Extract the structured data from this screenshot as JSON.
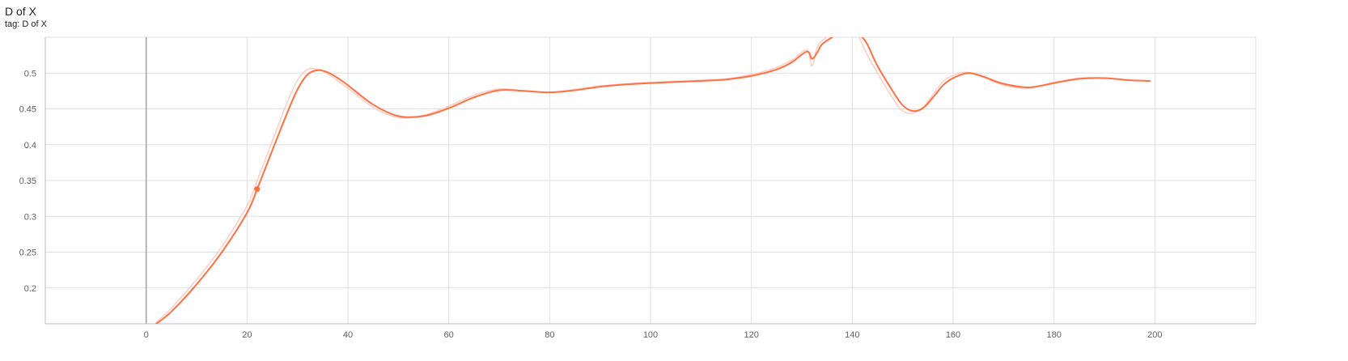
{
  "header": {
    "title": "D of X",
    "subtitle": "tag: D of X"
  },
  "chart_data": {
    "type": "line",
    "title": "D of X",
    "subtitle": "tag: D of X",
    "xlabel": "",
    "ylabel": "",
    "xlim": [
      -20,
      220
    ],
    "ylim": [
      0.15,
      0.55
    ],
    "x_ticks": [
      0,
      20,
      40,
      60,
      80,
      100,
      120,
      140,
      160,
      180,
      200
    ],
    "y_ticks": [
      0.2,
      0.25,
      0.3,
      0.35,
      0.4,
      0.45,
      0.5
    ],
    "grid": true,
    "colors": {
      "smoothed": "#ff7043",
      "raw": "#ffcdc2",
      "grid": "#e0e0e0",
      "zero_line": "#9e9e9e"
    },
    "series": [
      {
        "role": "smoothed",
        "x": [
          2,
          5,
          10,
          15,
          20,
          22,
          25,
          28,
          30,
          32,
          34,
          36,
          38,
          40,
          45,
          50,
          55,
          60,
          65,
          70,
          75,
          80,
          85,
          90,
          95,
          100,
          110,
          115,
          120,
          125,
          128,
          131,
          132,
          133,
          134,
          136,
          138,
          140,
          141,
          142,
          143,
          145,
          148,
          150,
          152,
          154,
          156,
          158,
          160,
          163,
          166,
          170,
          175,
          180,
          185,
          190,
          195,
          199
        ],
        "y": [
          0.15,
          0.167,
          0.205,
          0.25,
          0.305,
          0.338,
          0.392,
          0.445,
          0.477,
          0.498,
          0.504,
          0.501,
          0.493,
          0.483,
          0.456,
          0.44,
          0.44,
          0.451,
          0.466,
          0.476,
          0.475,
          0.473,
          0.476,
          0.481,
          0.484,
          0.486,
          0.489,
          0.491,
          0.496,
          0.505,
          0.515,
          0.53,
          0.52,
          0.528,
          0.54,
          0.55,
          0.56,
          0.57,
          0.56,
          0.55,
          0.54,
          0.51,
          0.475,
          0.455,
          0.447,
          0.451,
          0.466,
          0.483,
          0.493,
          0.5,
          0.495,
          0.485,
          0.48,
          0.486,
          0.492,
          0.493,
          0.49,
          0.489
        ]
      },
      {
        "role": "raw",
        "x": [
          2,
          5,
          10,
          15,
          20,
          22,
          25,
          28,
          30,
          32,
          34,
          36,
          38,
          40,
          45,
          50,
          55,
          60,
          65,
          70,
          75,
          80,
          85,
          90,
          95,
          100,
          110,
          115,
          120,
          125,
          128,
          131,
          132,
          133,
          134,
          136,
          138,
          140,
          141,
          142,
          143,
          145,
          148,
          150,
          152,
          154,
          156,
          158,
          160,
          163,
          166,
          170,
          175,
          180,
          185,
          190,
          195,
          199
        ],
        "y": [
          0.152,
          0.172,
          0.212,
          0.258,
          0.315,
          0.35,
          0.405,
          0.46,
          0.49,
          0.505,
          0.505,
          0.499,
          0.489,
          0.479,
          0.452,
          0.438,
          0.441,
          0.454,
          0.469,
          0.478,
          0.475,
          0.473,
          0.477,
          0.482,
          0.485,
          0.487,
          0.49,
          0.492,
          0.498,
          0.508,
          0.518,
          0.532,
          0.51,
          0.535,
          0.545,
          0.555,
          0.565,
          0.57,
          0.555,
          0.54,
          0.525,
          0.5,
          0.465,
          0.447,
          0.444,
          0.452,
          0.47,
          0.488,
          0.497,
          0.501,
          0.494,
          0.483,
          0.479,
          0.487,
          0.493,
          0.493,
          0.49,
          0.489
        ]
      }
    ],
    "highlight_point": {
      "x": 22,
      "y": 0.338
    }
  }
}
